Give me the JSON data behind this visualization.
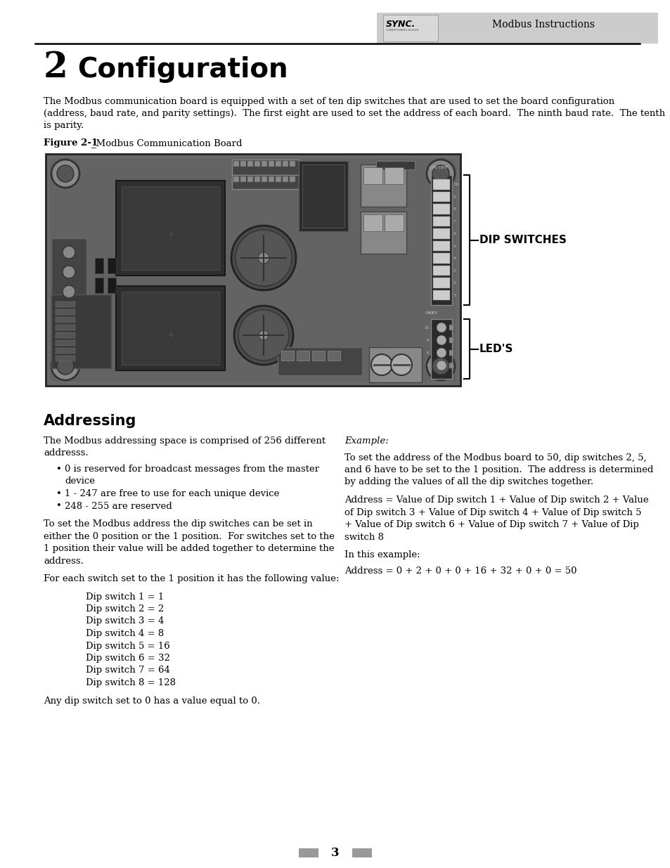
{
  "page_bg": "#ffffff",
  "header_bg": "#cccccc",
  "header_text": "Modbus Instructions",
  "section_number": "2",
  "section_title": "Configuration",
  "intro_text_lines": [
    "The Modbus communication board is equipped with a set of ten dip switches that are used to set the board configuration",
    "(address, baud rate, and parity settings).  The first eight are used to set the address of each board.  The ninth baud rate.  The tenth",
    "is parity."
  ],
  "figure_label_bold": "Figure 2-1",
  "figure_label_normal": "_Modbus Communication Board",
  "dip_label": "DIP SWITCHES",
  "led_label": "LED'S",
  "addressing_title": "Addressing",
  "left_col_para1_lines": [
    "The Modbus addressing space is comprised of 256 different",
    "addresss."
  ],
  "bullet_items": [
    [
      "0 is reserved for broadcast messages from the master",
      "device"
    ],
    [
      "1 - 247 are free to use for each unique device"
    ],
    [
      "248 - 255 are reserved"
    ]
  ],
  "left_col_para2_lines": [
    "To set the Modbus address the dip switches can be set in",
    "either the 0 position or the 1 position.  For switches set to the",
    "1 position their value will be added together to determine the",
    "address."
  ],
  "left_col_para3": "For each switch set to the 1 position it has the following value:",
  "dip_values": [
    "Dip switch 1 = 1",
    "Dip switch 2 = 2",
    "Dip switch 3 = 4",
    "Dip switch 4 = 8",
    "Dip switch 5 = 16",
    "Dip switch 6 = 32",
    "Dip switch 7 = 64",
    "Dip switch 8 = 128"
  ],
  "last_line": "Any dip switch set to 0 has a value equal to 0.",
  "example_label": "Example:",
  "example_para1_lines": [
    "To set the address of the Modbus board to 50, dip switches 2, 5,",
    "and 6 have to be set to the 1 position.  The address is determined",
    "by adding the values of all the dip switches together."
  ],
  "example_formula_lines": [
    "Address = Value of Dip switch 1 + Value of Dip switch 2 + Value",
    "of Dip switch 3 + Value of Dip switch 4 + Value of Dip switch 5",
    "+ Value of Dip switch 6 + Value of Dip switch 7 + Value of Dip",
    "switch 8"
  ],
  "example_in_this": "In this example:",
  "example_calc": "Address = 0 + 2 + 0 + 0 + 16 + 32 + 0 + 0 = 50",
  "page_number": "3"
}
